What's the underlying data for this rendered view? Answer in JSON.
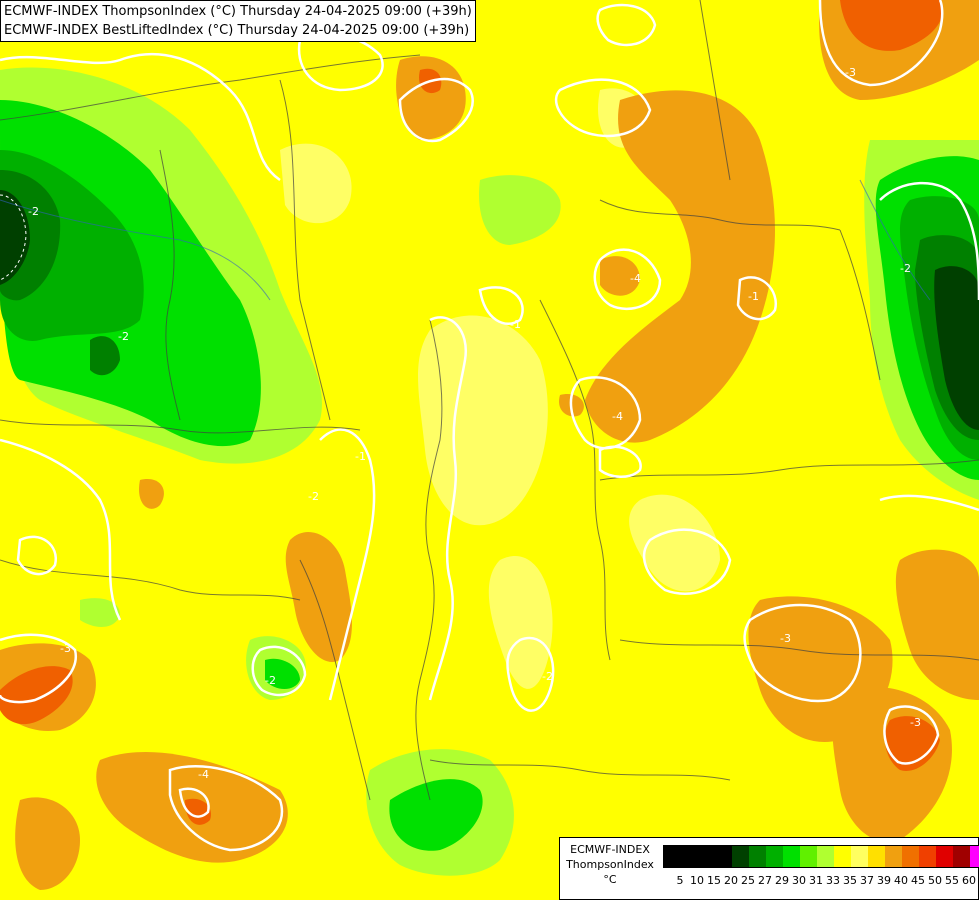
{
  "header": {
    "line1": "ECMWF-INDEX ThompsonIndex (°C) Thursday 24-04-2025 09:00 (+39h)",
    "line2": "ECMWF-INDEX BestLiftedIndex (°C) Thursday 24-04-2025 09:00 (+39h)"
  },
  "legend": {
    "model": "ECMWF-INDEX",
    "variable": "ThompsonIndex",
    "unit": "°C",
    "colors": [
      "#000000",
      "#000000",
      "#000000",
      "#000000",
      "#004000",
      "#008000",
      "#00b000",
      "#00e000",
      "#60f000",
      "#b0ff30",
      "#ffff00",
      "#ffff60",
      "#ffe000",
      "#f0a010",
      "#f07000",
      "#f04000",
      "#e00000",
      "#a00000",
      "#ff00ff",
      "#c000ff",
      "#a000ff",
      "#6000ff",
      "#0000ff"
    ],
    "ticks": [
      "5",
      "10",
      "15",
      "20",
      "25",
      "27",
      "29",
      "30",
      "31",
      "33",
      "35",
      "37",
      "39",
      "40",
      "45",
      "50",
      "55",
      "60"
    ]
  },
  "contour_labels": [
    "-2",
    "-2",
    "-1",
    "-1",
    "-2",
    "-2",
    "-3",
    "-3",
    "-4",
    "-3",
    "-4",
    "-3",
    "-4",
    "-2",
    "-2",
    "-1"
  ]
}
